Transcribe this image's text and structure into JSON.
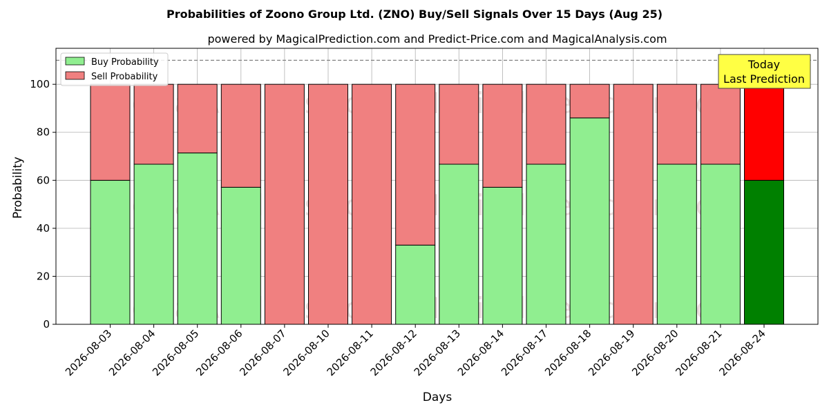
{
  "chart_data": {
    "type": "bar",
    "stacked": true,
    "title": "Probabilities of Zoono Group Ltd. (ZNO) Buy/Sell Signals Over 15 Days (Aug 25)",
    "subtitle": "powered by MagicalPrediction.com and Predict-Price.com and MagicalAnalysis.com",
    "xlabel": "Days",
    "ylabel": "Probability",
    "ylim": [
      0,
      115
    ],
    "yticks": [
      0,
      20,
      40,
      60,
      80,
      100
    ],
    "reference_line": 110,
    "grid": true,
    "legend_position": "top-left",
    "categories": [
      "2026-08-03",
      "2026-08-04",
      "2026-08-05",
      "2026-08-06",
      "2026-08-07",
      "2026-08-10",
      "2026-08-11",
      "2026-08-12",
      "2026-08-13",
      "2026-08-14",
      "2026-08-17",
      "2026-08-18",
      "2026-08-19",
      "2026-08-20",
      "2026-08-21",
      "2026-08-24"
    ],
    "series": [
      {
        "name": "Buy Probability",
        "color": "#90ee90",
        "highlight_color": "#008000",
        "values": [
          60,
          66.7,
          71.4,
          57.1,
          0,
          0,
          0,
          33,
          66.7,
          57.1,
          66.7,
          86,
          0,
          66.7,
          66.7,
          60
        ]
      },
      {
        "name": "Sell Probability",
        "color": "#f08080",
        "highlight_color": "#ff0000",
        "values": [
          40,
          33.3,
          28.6,
          42.9,
          100,
          100,
          100,
          67,
          33.3,
          42.9,
          33.3,
          14,
          100,
          33.3,
          33.3,
          40
        ]
      }
    ],
    "highlight_index": 15,
    "annotation": {
      "lines": [
        "Today",
        "Last Prediction"
      ],
      "background": "#ffff44"
    },
    "watermarks": [
      "MagicalAnalysis.com",
      "MagicalPrediction.com"
    ]
  }
}
